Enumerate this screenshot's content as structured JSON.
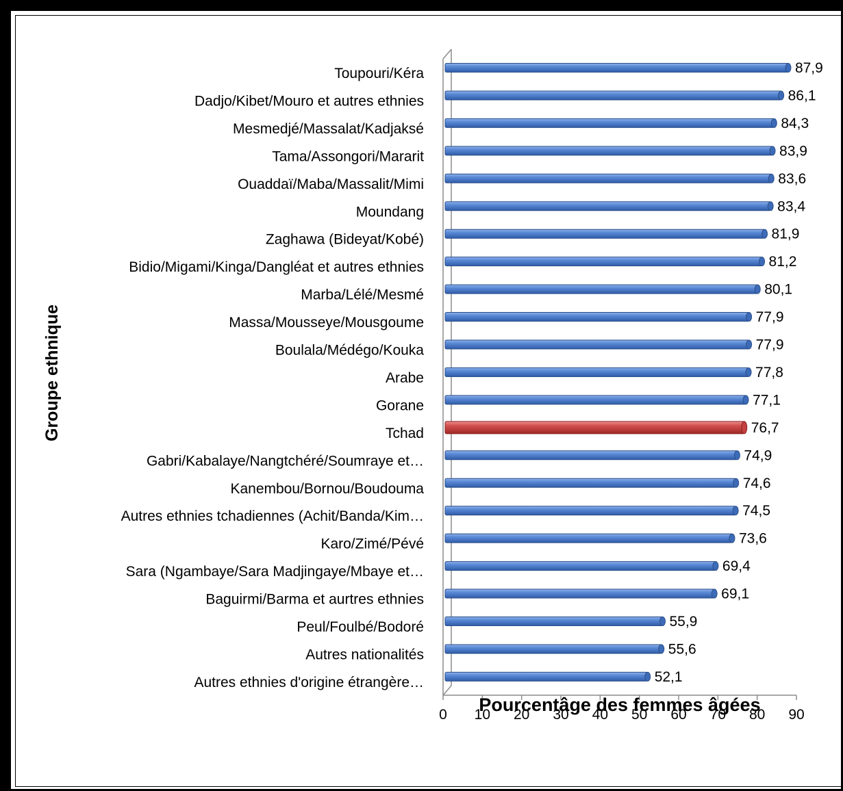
{
  "chart_data": {
    "type": "bar",
    "orientation": "horizontal",
    "xlabel": "Pourcentâge des femmes âgées",
    "ylabel": "Groupe ethnique",
    "xlim": [
      0,
      90
    ],
    "xticks": [
      0,
      10,
      20,
      30,
      40,
      50,
      60,
      70,
      80,
      90
    ],
    "categories": [
      "Toupouri/Kéra",
      "Dadjo/Kibet/Mouro et autres ethnies",
      "Mesmedjé/Massalat/Kadjaksé",
      "Tama/Assongori/Mararit",
      "Ouaddaï/Maba/Massalit/Mimi",
      "Moundang",
      "Zaghawa (Bideyat/Kobé)",
      "Bidio/Migami/Kinga/Dangléat et autres ethnies",
      "Marba/Lélé/Mesmé",
      "Massa/Mousseye/Mousgoume",
      "Boulala/Médégo/Kouka",
      "Arabe",
      "Gorane",
      "Tchad",
      "Gabri/Kabalaye/Nangtchéré/Soumraye et…",
      "Kanembou/Bornou/Boudouma",
      "Autres ethnies tchadiennes (Achit/Banda/Kim…",
      "Karo/Zimé/Pévé",
      "Sara (Ngambaye/Sara Madjingaye/Mbaye et…",
      "Baguirmi/Barma et aurtres ethnies",
      "Peul/Foulbé/Bodoré",
      "Autres nationalités",
      "Autres ethnies d'origine étrangère…"
    ],
    "values": [
      87.9,
      86.1,
      84.3,
      83.9,
      83.6,
      83.4,
      81.9,
      81.2,
      80.1,
      77.9,
      77.9,
      77.8,
      77.1,
      76.7,
      74.9,
      74.6,
      74.5,
      73.6,
      69.4,
      69.1,
      55.9,
      55.6,
      52.1
    ],
    "value_labels": [
      "87,9",
      "86,1",
      "84,3",
      "83,9",
      "83,6",
      "83,4",
      "81,9",
      "81,2",
      "80,1",
      "77,9",
      "77,9",
      "77,8",
      "77,1",
      "76,7",
      "74,9",
      "74,6",
      "74,5",
      "73,6",
      "69,4",
      "69,1",
      "55,9",
      "55,6",
      "52,1"
    ],
    "highlight": "Tchad",
    "colors": {
      "bar": "#4a7cc9",
      "bar_highlight": "#c9413f",
      "bar_edge": "#2c4f8a",
      "bar_edge_highlight": "#8a2220"
    },
    "grid": false,
    "legend": "none"
  }
}
